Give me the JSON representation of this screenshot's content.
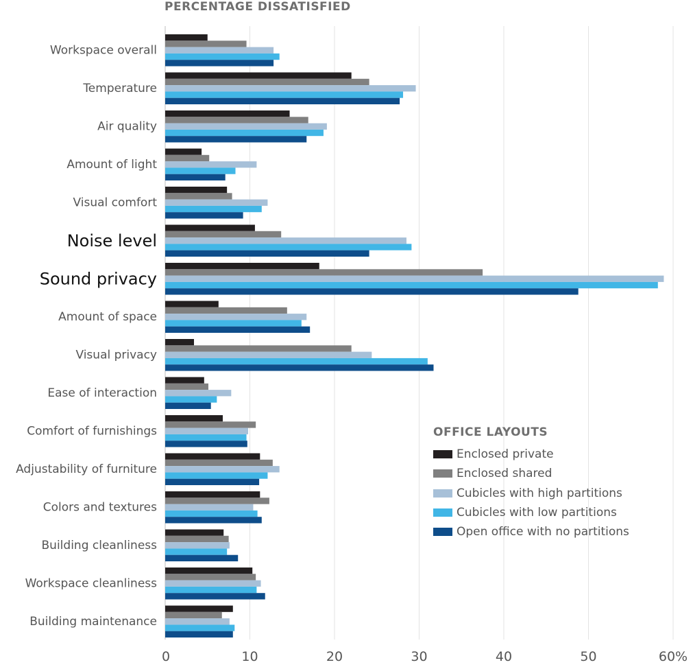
{
  "chart_data": {
    "type": "bar",
    "orientation": "horizontal",
    "title": "PERCENTAGE DISSATISFIED",
    "categories": [
      "Workspace overall",
      "Temperature",
      "Air quality",
      "Amount of light",
      "Visual comfort",
      "Noise level",
      "Sound privacy",
      "Amount of space",
      "Visual privacy",
      "Ease of interaction",
      "Comfort of furnishings",
      "Adjustability of furniture",
      "Colors and textures",
      "Building cleanliness",
      "Workspace cleanliness",
      "Building maintenance"
    ],
    "highlighted_categories": [
      "Noise level",
      "Sound privacy"
    ],
    "series": [
      {
        "name": "Enclosed private",
        "color": "#231f20",
        "values": [
          5,
          22,
          14.7,
          4.3,
          7.3,
          10.6,
          18.2,
          6.3,
          3.4,
          4.6,
          6.8,
          11.2,
          11.2,
          6.9,
          10.3,
          8
        ]
      },
      {
        "name": "Enclosed shared",
        "color": "#808080",
        "values": [
          9.6,
          24.1,
          16.9,
          5.2,
          7.9,
          13.7,
          37.5,
          14.4,
          22,
          5.1,
          10.7,
          12.7,
          12.3,
          7.5,
          10.7,
          6.7
        ]
      },
      {
        "name": "Cubicles with high partitions",
        "color": "#a7c0d8",
        "values": [
          12.8,
          29.6,
          19.1,
          10.8,
          12.1,
          28.5,
          58.9,
          16.7,
          24.4,
          7.8,
          9.8,
          13.5,
          10.4,
          7.6,
          11.3,
          7.6
        ]
      },
      {
        "name": "Cubicles with low partitions",
        "color": "#41b6e6",
        "values": [
          13.5,
          28.1,
          18.7,
          8.3,
          11.4,
          29.1,
          58.2,
          16.1,
          31,
          6.1,
          9.6,
          12.1,
          10.9,
          7.3,
          10.8,
          8.2
        ]
      },
      {
        "name": "Open office with no partitions",
        "color": "#0e4d8a",
        "values": [
          12.8,
          27.7,
          16.7,
          7.1,
          9.2,
          24.1,
          48.8,
          17.1,
          31.7,
          5.4,
          9.7,
          11.1,
          11.4,
          8.6,
          11.8,
          8
        ]
      }
    ],
    "x_ticks": [
      "0",
      "10",
      "20",
      "30",
      "40",
      "50",
      "60%"
    ],
    "xlim": [
      0,
      60
    ],
    "grid": "vertical",
    "legend": {
      "title": "OFFICE LAYOUTS",
      "position": "lower-right"
    }
  }
}
